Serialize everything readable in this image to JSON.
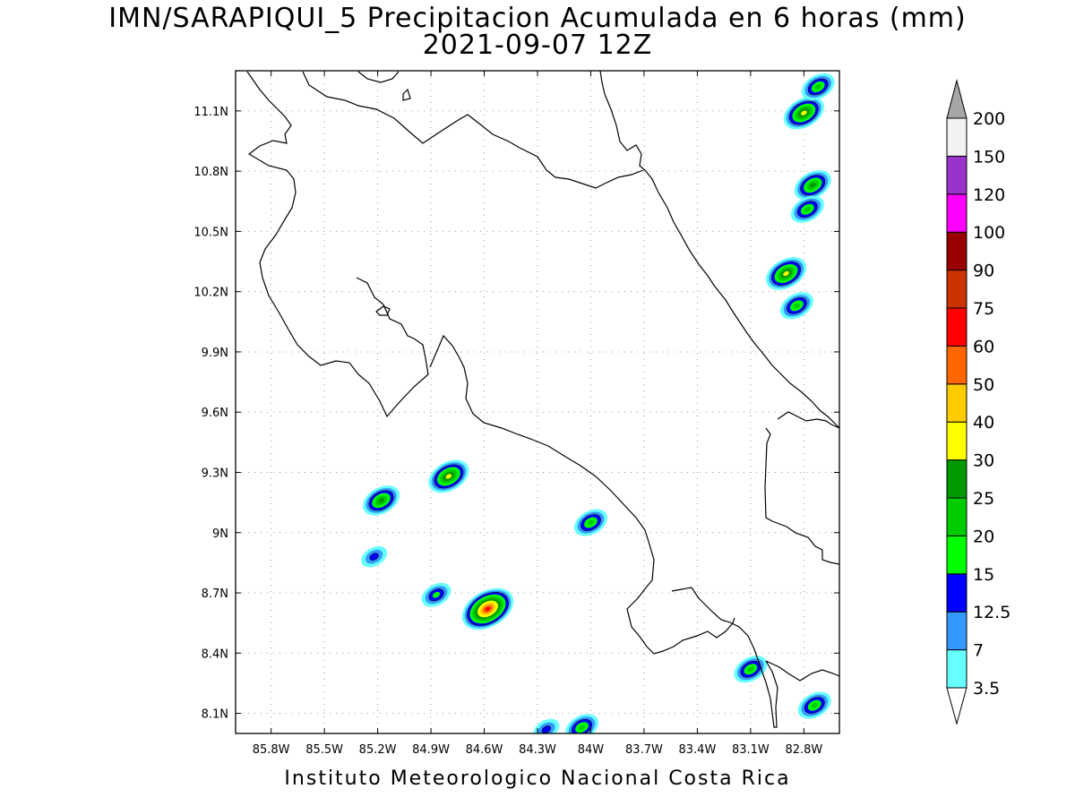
{
  "title_line1": "IMN/SARAPIQUI_5 Precipitacion Acumulada en 6 horas (mm)",
  "title_line2": "2021-09-07 12Z",
  "footer": "Instituto Meteorologico Nacional Costa Rica",
  "map": {
    "lon_range": [
      -86.0,
      -82.6
    ],
    "lat_range": [
      8.0,
      11.3
    ],
    "x_ticks": [
      "85.8W",
      "85.5W",
      "85.2W",
      "84.9W",
      "84.6W",
      "84.3W",
      "84W",
      "83.7W",
      "83.4W",
      "83.1W",
      "82.8W"
    ],
    "x_tick_values": [
      -85.8,
      -85.5,
      -85.2,
      -84.9,
      -84.6,
      -84.3,
      -84.0,
      -83.7,
      -83.4,
      -83.1,
      -82.8
    ],
    "y_ticks": [
      "8.1N",
      "8.4N",
      "8.7N",
      "9N",
      "9.3N",
      "9.6N",
      "9.9N",
      "10.2N",
      "10.5N",
      "10.8N",
      "11.1N"
    ],
    "y_tick_values": [
      8.1,
      8.4,
      8.7,
      9.0,
      9.3,
      9.6,
      9.9,
      10.2,
      10.5,
      10.8,
      11.1
    ],
    "grid": true
  },
  "colorbar": {
    "levels": [
      "3.5",
      "7",
      "12.5",
      "15",
      "20",
      "25",
      "30",
      "40",
      "50",
      "60",
      "75",
      "90",
      "100",
      "120",
      "150",
      "200"
    ],
    "colors": [
      "#66ffff",
      "#3399ff",
      "#0000ff",
      "#00ff00",
      "#00cc00",
      "#009900",
      "#ffff00",
      "#ffcc00",
      "#ff6600",
      "#ff0000",
      "#cc3300",
      "#990000",
      "#ff00ff",
      "#9933cc",
      "#f2f2f2",
      "#a6a6a6"
    ],
    "under_color": "#ffffff"
  },
  "precip_cells": [
    {
      "lon": -84.58,
      "lat": 8.62,
      "peak_mm": 60
    },
    {
      "lon": -84.8,
      "lat": 9.28,
      "peak_mm": 30
    },
    {
      "lon": -85.18,
      "lat": 9.16,
      "peak_mm": 25
    },
    {
      "lon": -84.0,
      "lat": 9.05,
      "peak_mm": 20
    },
    {
      "lon": -84.87,
      "lat": 8.69,
      "peak_mm": 15
    },
    {
      "lon": -83.1,
      "lat": 8.32,
      "peak_mm": 20
    },
    {
      "lon": -82.9,
      "lat": 10.29,
      "peak_mm": 30
    },
    {
      "lon": -82.84,
      "lat": 10.13,
      "peak_mm": 20
    },
    {
      "lon": -82.8,
      "lat": 11.09,
      "peak_mm": 30
    },
    {
      "lon": -82.75,
      "lat": 10.73,
      "peak_mm": 25
    },
    {
      "lon": -82.78,
      "lat": 10.61,
      "peak_mm": 20
    },
    {
      "lon": -82.72,
      "lat": 11.22,
      "peak_mm": 20
    },
    {
      "lon": -82.74,
      "lat": 8.14,
      "peak_mm": 20
    },
    {
      "lon": -84.05,
      "lat": 8.03,
      "peak_mm": 20
    },
    {
      "lon": -84.25,
      "lat": 8.02,
      "peak_mm": 12.5
    },
    {
      "lon": -85.22,
      "lat": 8.88,
      "peak_mm": 12.5
    }
  ]
}
